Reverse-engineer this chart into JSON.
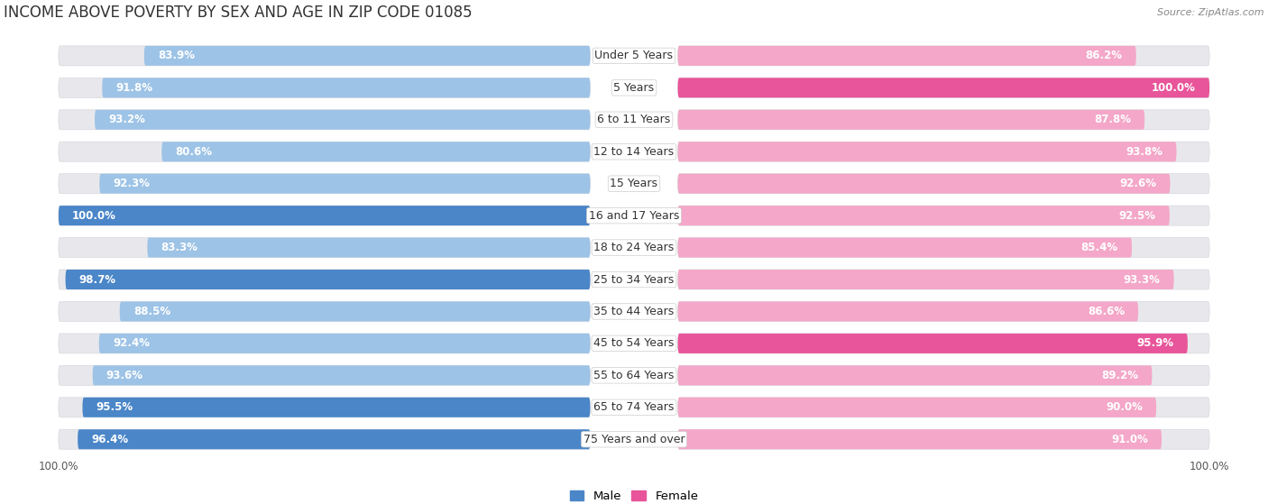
{
  "title": "INCOME ABOVE POVERTY BY SEX AND AGE IN ZIP CODE 01085",
  "source": "Source: ZipAtlas.com",
  "categories": [
    "Under 5 Years",
    "5 Years",
    "6 to 11 Years",
    "12 to 14 Years",
    "15 Years",
    "16 and 17 Years",
    "18 to 24 Years",
    "25 to 34 Years",
    "35 to 44 Years",
    "45 to 54 Years",
    "55 to 64 Years",
    "65 to 74 Years",
    "75 Years and over"
  ],
  "male_values": [
    83.9,
    91.8,
    93.2,
    80.6,
    92.3,
    100.0,
    83.3,
    98.7,
    88.5,
    92.4,
    93.6,
    95.5,
    96.4
  ],
  "female_values": [
    86.2,
    100.0,
    87.8,
    93.8,
    92.6,
    92.5,
    85.4,
    93.3,
    86.6,
    95.9,
    89.2,
    90.0,
    91.0
  ],
  "male_color_dark": "#4a86c8",
  "male_color_light": "#9dc3e6",
  "male_threshold": 95.0,
  "female_color_dark": "#e8559a",
  "female_color_light": "#f4a7c8",
  "female_threshold": 95.0,
  "bg_color": "#ffffff",
  "bar_track_color": "#e8e8ec",
  "title_fontsize": 12,
  "label_fontsize": 9,
  "value_fontsize": 8.5,
  "source_fontsize": 8,
  "legend_fontsize": 9.5,
  "max_val": 100.0
}
